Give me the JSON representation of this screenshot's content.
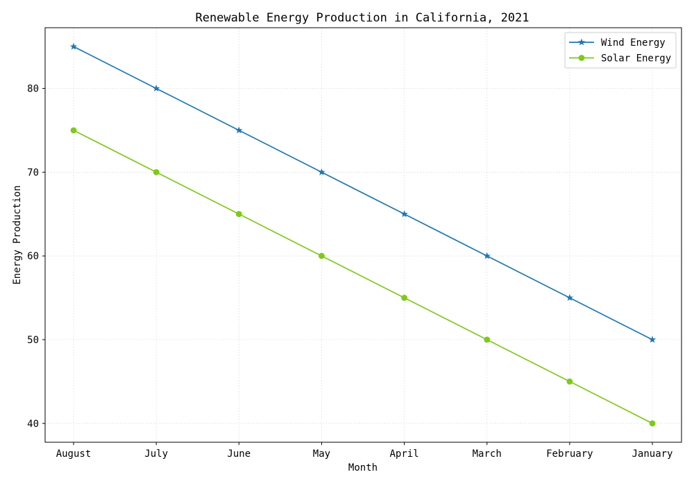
{
  "chart_data": {
    "type": "line",
    "title": "Renewable Energy Production in California, 2021",
    "xlabel": "Month",
    "ylabel": "Energy Production",
    "categories": [
      "August",
      "July",
      "June",
      "May",
      "April",
      "March",
      "February",
      "January"
    ],
    "series": [
      {
        "name": "Wind Energy",
        "values": [
          85,
          80,
          75,
          70,
          65,
          60,
          55,
          50
        ],
        "color": "#1f77b4",
        "marker": "star"
      },
      {
        "name": "Solar Energy",
        "values": [
          75,
          70,
          65,
          60,
          55,
          50,
          45,
          40
        ],
        "color": "#7ec919",
        "marker": "circle"
      }
    ],
    "ylim": [
      37.75,
      87.25
    ],
    "yticks": [
      40,
      50,
      60,
      70,
      80
    ],
    "grid": true,
    "legend_position": "top-right"
  }
}
